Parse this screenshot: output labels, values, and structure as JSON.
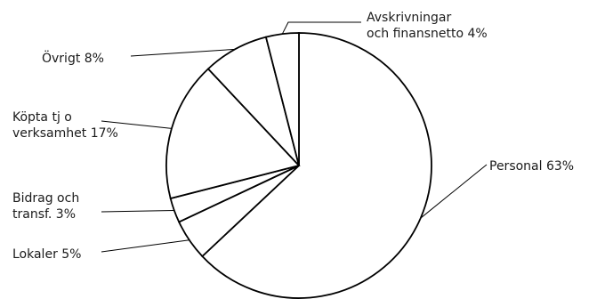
{
  "chart_data": {
    "type": "pie",
    "title": "",
    "slices": [
      {
        "lines": [
          "Personal 63%"
        ],
        "value": 63
      },
      {
        "lines": [
          "Lokaler 5%"
        ],
        "value": 5
      },
      {
        "lines": [
          "Bidrag och",
          "transf. 3%"
        ],
        "value": 3
      },
      {
        "lines": [
          "Köpta tj o",
          "verksamhet 17%"
        ],
        "value": 17
      },
      {
        "lines": [
          "Övrigt 8%"
        ],
        "value": 8
      },
      {
        "lines": [
          "Avskrivningar",
          "och finansnetto 4%"
        ],
        "value": 4
      }
    ],
    "colors": {
      "fill": "#ffffff",
      "stroke": "#000000"
    }
  }
}
